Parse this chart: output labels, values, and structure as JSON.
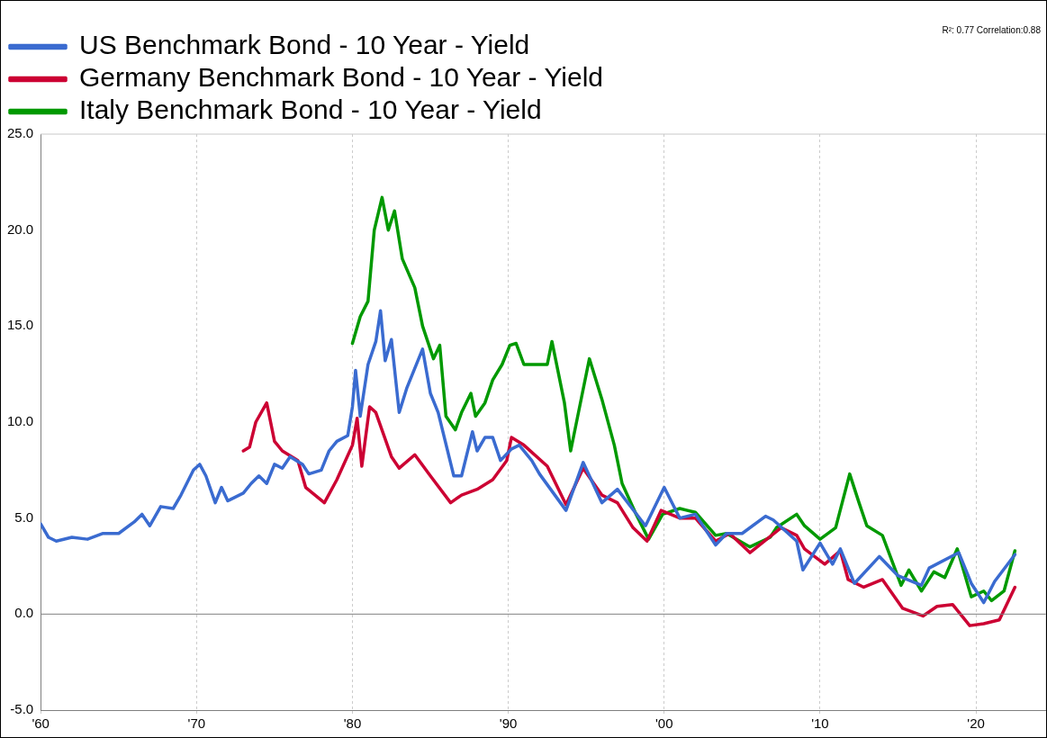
{
  "chart_data": {
    "type": "line",
    "annotations": [
      "R²: 0.77 Correlation:0.88"
    ],
    "xlim": [
      1960,
      2024.5
    ],
    "xticks": [
      {
        "value": 1960,
        "label": "'60"
      },
      {
        "value": 1970,
        "label": "'70"
      },
      {
        "value": 1980,
        "label": "'80"
      },
      {
        "value": 1990,
        "label": "'90"
      },
      {
        "value": 2000,
        "label": "'00"
      },
      {
        "value": 2010,
        "label": "'10"
      },
      {
        "value": 2020,
        "label": "'20"
      }
    ],
    "ylim": [
      -5,
      25
    ],
    "yticks": [
      {
        "value": -5,
        "label": "-5.0"
      },
      {
        "value": 0,
        "label": "0.0"
      },
      {
        "value": 5,
        "label": "5.0"
      },
      {
        "value": 10,
        "label": "10.0"
      },
      {
        "value": 15,
        "label": "15.0"
      },
      {
        "value": 20,
        "label": "20.0"
      },
      {
        "value": 25,
        "label": "25.0"
      }
    ],
    "grid": "x",
    "legend": "top left",
    "marker": "none",
    "line_style": "solid",
    "ref_lines": [
      {
        "axis": "y",
        "value": 0,
        "label": null,
        "color": "#808080"
      }
    ],
    "series": [
      {
        "name": "US Benchmark Bond - 10 Year - Yield",
        "color": "#3a6bd0",
        "x": [
          1960,
          1960.5,
          1961,
          1962,
          1963,
          1964,
          1965,
          1966,
          1966.5,
          1967,
          1967.7,
          1968.5,
          1969,
          1969.8,
          1970.2,
          1970.6,
          1971.2,
          1971.6,
          1972,
          1973,
          1973.5,
          1974,
          1974.5,
          1975,
          1975.5,
          1976,
          1976.8,
          1977.2,
          1978,
          1978.5,
          1979,
          1979.7,
          1980,
          1980.2,
          1980.5,
          1981,
          1981.5,
          1981.8,
          1982.1,
          1982.5,
          1983,
          1983.5,
          1984.5,
          1985,
          1985.5,
          1986.5,
          1987,
          1987.7,
          1988,
          1988.5,
          1989,
          1989.5,
          1990.2,
          1990.7,
          1991.5,
          1992,
          1993.7,
          1994.8,
          1996,
          1997,
          1998.8,
          2000,
          2001,
          2002,
          2003.3,
          2004,
          2005,
          2006.5,
          2007,
          2008.5,
          2008.9,
          2010,
          2010.8,
          2011.3,
          2012.2,
          2013.8,
          2015,
          2016.5,
          2017,
          2018.9,
          2019.7,
          2020.5,
          2021.2,
          2022.5
        ],
        "values": [
          4.7,
          4.0,
          3.8,
          4.0,
          3.9,
          4.2,
          4.2,
          4.8,
          5.2,
          4.6,
          5.6,
          5.5,
          6.2,
          7.5,
          7.8,
          7.2,
          5.8,
          6.6,
          5.9,
          6.3,
          6.8,
          7.2,
          6.8,
          7.8,
          7.6,
          8.2,
          7.8,
          7.3,
          7.5,
          8.5,
          9.0,
          9.3,
          10.8,
          12.7,
          10.3,
          13.0,
          14.2,
          15.8,
          13.2,
          14.3,
          10.5,
          11.8,
          13.8,
          11.5,
          10.5,
          7.2,
          7.2,
          9.5,
          8.5,
          9.2,
          9.2,
          8.0,
          8.6,
          8.8,
          8.0,
          7.3,
          5.4,
          7.9,
          5.8,
          6.5,
          4.6,
          6.6,
          5.0,
          5.2,
          3.6,
          4.2,
          4.2,
          5.1,
          4.9,
          3.8,
          2.3,
          3.7,
          2.6,
          3.4,
          1.6,
          3.0,
          2.0,
          1.5,
          2.4,
          3.2,
          1.6,
          0.6,
          1.7,
          3.1
        ]
      },
      {
        "name": "Germany Benchmark Bond - 10 Year - Yield",
        "color": "#cc0033",
        "x": [
          1973,
          1973.4,
          1973.8,
          1974.5,
          1975,
          1975.5,
          1976.5,
          1977,
          1978.2,
          1979,
          1980,
          1980.3,
          1980.6,
          1981.1,
          1981.5,
          1982.5,
          1983,
          1984,
          1985,
          1986.3,
          1987,
          1988,
          1989,
          1989.9,
          1990.2,
          1991,
          1992.5,
          1993.7,
          1994.8,
          1996,
          1997,
          1998,
          1998.9,
          1999.8,
          2001,
          2002,
          2003.3,
          2004.2,
          2005.5,
          2007.5,
          2008.5,
          2009,
          2010.3,
          2011.3,
          2011.8,
          2012.8,
          2014,
          2015.3,
          2016.6,
          2017.5,
          2018.5,
          2019.6,
          2020.5,
          2021.5,
          2022.5
        ],
        "values": [
          8.5,
          8.7,
          10.0,
          11.0,
          9.0,
          8.5,
          8.0,
          6.6,
          5.8,
          7.0,
          8.8,
          10.2,
          7.7,
          10.8,
          10.5,
          8.2,
          7.6,
          8.3,
          7.2,
          5.8,
          6.2,
          6.5,
          7.0,
          8.0,
          9.2,
          8.8,
          7.7,
          5.7,
          7.6,
          6.2,
          5.8,
          4.5,
          3.8,
          5.4,
          5.0,
          5.0,
          3.8,
          4.2,
          3.2,
          4.5,
          4.1,
          3.4,
          2.6,
          3.3,
          1.8,
          1.4,
          1.8,
          0.3,
          -0.1,
          0.4,
          0.5,
          -0.6,
          -0.5,
          -0.3,
          1.4
        ]
      },
      {
        "name": "Italy Benchmark Bond - 10 Year - Yield",
        "color": "#009900",
        "x": [
          1980,
          1980.5,
          1981,
          1981.4,
          1981.9,
          1982.3,
          1982.7,
          1983.2,
          1984,
          1984.5,
          1985.2,
          1985.6,
          1986,
          1986.6,
          1987,
          1987.6,
          1987.9,
          1988.5,
          1989,
          1989.6,
          1990.1,
          1990.5,
          1991,
          1992.5,
          1992.8,
          1993.6,
          1994,
          1994.7,
          1995.2,
          1996,
          1996.8,
          1997.3,
          1998.2,
          1999,
          1999.9,
          2001,
          2002,
          2003.3,
          2004,
          2005.5,
          2006.8,
          2007.2,
          2008.5,
          2009,
          2010,
          2011,
          2011.9,
          2012.5,
          2013,
          2014,
          2015.2,
          2015.7,
          2016.5,
          2017.3,
          2018,
          2018.8,
          2019.7,
          2020.5,
          2021,
          2021.8,
          2022.5
        ],
        "values": [
          14.1,
          15.5,
          16.3,
          20.0,
          21.7,
          20.0,
          21.0,
          18.5,
          17.0,
          15.0,
          13.3,
          14.0,
          10.3,
          9.6,
          10.5,
          11.5,
          10.3,
          11.0,
          12.2,
          13.0,
          14.0,
          14.1,
          13.0,
          13.0,
          14.2,
          11.0,
          8.5,
          11.3,
          13.3,
          11.2,
          8.8,
          6.8,
          5.2,
          3.9,
          5.2,
          5.5,
          5.3,
          4.1,
          4.2,
          3.5,
          4.0,
          4.5,
          5.2,
          4.6,
          3.9,
          4.5,
          7.3,
          5.8,
          4.6,
          4.1,
          1.5,
          2.3,
          1.2,
          2.2,
          1.9,
          3.4,
          0.9,
          1.2,
          0.7,
          1.2,
          3.3
        ]
      }
    ]
  }
}
